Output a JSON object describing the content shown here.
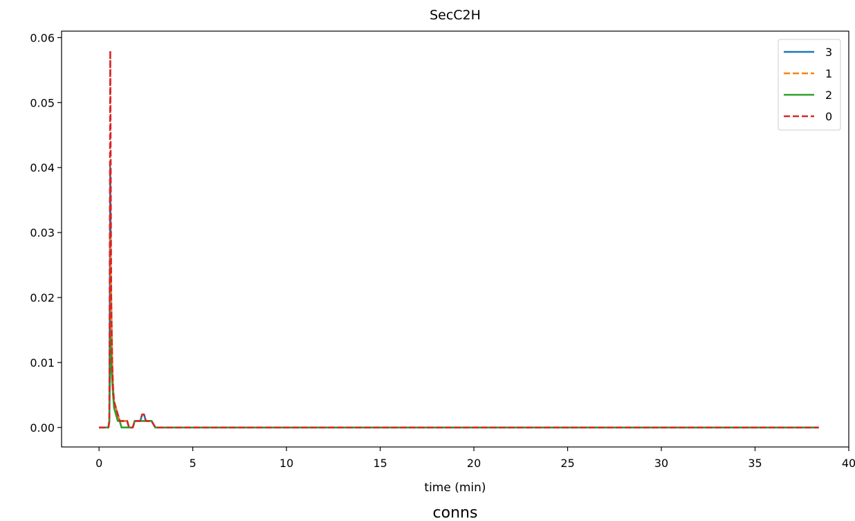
{
  "chart_data": {
    "type": "line",
    "title": "SecC2H",
    "xlabel": "time (min)",
    "ylabel": "",
    "footer_label": "conns",
    "xlim": [
      -2,
      40
    ],
    "ylim": [
      -0.003,
      0.061
    ],
    "xticks": [
      0,
      5,
      10,
      15,
      20,
      25,
      30,
      35,
      40
    ],
    "xtick_labels": [
      "0",
      "5",
      "10",
      "15",
      "20",
      "25",
      "30",
      "35",
      "40"
    ],
    "yticks": [
      0.0,
      0.01,
      0.02,
      0.03,
      0.04,
      0.05,
      0.06
    ],
    "ytick_labels": [
      "0.00",
      "0.01",
      "0.02",
      "0.03",
      "0.04",
      "0.05",
      "0.06"
    ],
    "grid": false,
    "legend_position": "top-right",
    "series": [
      {
        "name": "3",
        "color": "#1f77b4",
        "dash": "solid",
        "x": [
          0,
          0.5,
          0.55,
          0.6,
          0.65,
          0.7,
          0.75,
          0.8,
          0.9,
          1.0,
          1.1,
          1.2,
          1.5,
          1.6,
          1.8,
          1.9,
          2.0,
          2.2,
          2.3,
          2.4,
          2.5,
          2.6,
          2.8,
          3.0,
          38.4
        ],
        "y": [
          0,
          0,
          0.001,
          0.04,
          0.012,
          0.008,
          0.005,
          0.004,
          0.003,
          0.002,
          0.001,
          0.001,
          0.001,
          0,
          0,
          0.001,
          0.001,
          0.001,
          0.002,
          0.002,
          0.001,
          0.001,
          0.001,
          0,
          0
        ]
      },
      {
        "name": "1",
        "color": "#ff7f0e",
        "dash": "dashed",
        "x": [
          0,
          0.5,
          0.55,
          0.6,
          0.65,
          0.7,
          0.75,
          0.8,
          0.9,
          1.0,
          1.1,
          1.2,
          1.5,
          1.6,
          1.8,
          1.9,
          2.0,
          2.2,
          2.3,
          2.4,
          2.5,
          2.6,
          2.8,
          3.0,
          38.4
        ],
        "y": [
          0,
          0,
          0.001,
          0.03,
          0.02,
          0.01,
          0.006,
          0.004,
          0.003,
          0.002,
          0.001,
          0.001,
          0.001,
          0,
          0,
          0.001,
          0.001,
          0.001,
          0.001,
          0.001,
          0.001,
          0.001,
          0.001,
          0,
          0
        ]
      },
      {
        "name": "2",
        "color": "#2ca02c",
        "dash": "solid",
        "x": [
          0,
          0.5,
          0.55,
          0.6,
          0.65,
          0.7,
          0.75,
          0.8,
          0.9,
          1.0,
          1.1,
          1.2,
          1.4,
          1.5,
          1.8,
          1.9,
          2.0,
          2.2,
          2.3,
          2.4,
          2.5,
          2.6,
          2.8,
          3.0,
          38.4
        ],
        "y": [
          0,
          0,
          0.001,
          0.014,
          0.01,
          0.007,
          0.005,
          0.003,
          0.002,
          0.001,
          0.001,
          0,
          0,
          0,
          0,
          0.001,
          0.001,
          0.001,
          0.001,
          0.001,
          0.001,
          0.001,
          0.001,
          0,
          0
        ]
      },
      {
        "name": "0",
        "color": "#d62728",
        "dash": "dashed",
        "x": [
          0,
          0.5,
          0.55,
          0.6,
          0.65,
          0.7,
          0.75,
          0.8,
          0.9,
          1.0,
          1.1,
          1.2,
          1.5,
          1.6,
          1.8,
          1.9,
          2.0,
          2.2,
          2.3,
          2.4,
          2.5,
          2.6,
          2.8,
          3.0,
          38.4
        ],
        "y": [
          0,
          0,
          0.001,
          0.058,
          0.02,
          0.01,
          0.006,
          0.004,
          0.003,
          0.002,
          0.001,
          0.001,
          0.001,
          0,
          0,
          0.001,
          0.001,
          0.001,
          0.002,
          0.002,
          0.001,
          0.001,
          0.001,
          0,
          0
        ]
      }
    ]
  }
}
